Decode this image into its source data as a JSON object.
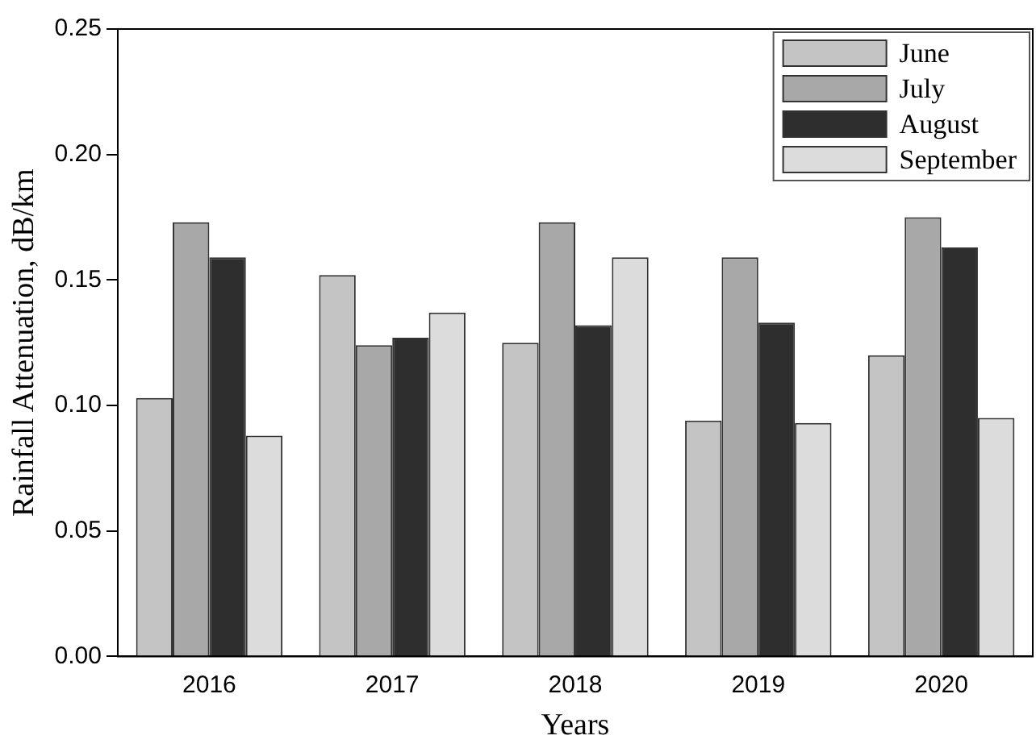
{
  "chart_data": {
    "type": "bar",
    "xlabel": "Years",
    "ylabel": "Rainfall Attenuation, dB/km",
    "categories": [
      "2016",
      "2017",
      "2018",
      "2019",
      "2020"
    ],
    "series": [
      {
        "name": "June",
        "color": "#c4c4c4",
        "values": [
          0.103,
          0.152,
          0.125,
          0.094,
          0.12
        ]
      },
      {
        "name": "July",
        "color": "#a8a8a8",
        "values": [
          0.173,
          0.124,
          0.173,
          0.159,
          0.175
        ]
      },
      {
        "name": "August",
        "color": "#2e2e2e",
        "values": [
          0.159,
          0.127,
          0.132,
          0.133,
          0.163
        ]
      },
      {
        "name": "September",
        "color": "#dcdcdc",
        "values": [
          0.088,
          0.137,
          0.159,
          0.093,
          0.095
        ]
      }
    ],
    "ylim": [
      0,
      0.25
    ],
    "yticks": [
      {
        "value": 0,
        "label": "0.00"
      },
      {
        "value": 0.05,
        "label": "0.05"
      },
      {
        "value": 0.1,
        "label": "0.10"
      },
      {
        "value": 0.15,
        "label": "0.15"
      },
      {
        "value": 0.2,
        "label": "0.20"
      },
      {
        "value": 0.25,
        "label": "0.25"
      }
    ],
    "grid": false,
    "legend": "top right"
  }
}
